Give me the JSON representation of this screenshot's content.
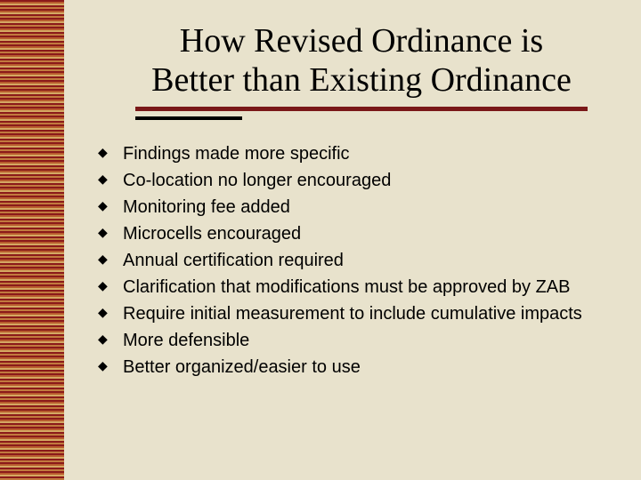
{
  "slide": {
    "background_color": "#e8e2cc",
    "stripe_colors": [
      "#8b1a1a",
      "#b85c2e",
      "#d4a862",
      "#c17a3e"
    ],
    "title": "How Revised Ordinance is Better than Existing Ordinance",
    "title_fontsize": 38,
    "title_color": "#000000",
    "underline_primary_color": "#7a1818",
    "underline_secondary_color": "#000000",
    "bullet_fontsize": 20,
    "bullet_color": "#000000",
    "bullets": [
      "Findings made more specific",
      "Co-location no longer encouraged",
      "Monitoring fee added",
      "Microcells encouraged",
      "Annual certification required",
      "Clarification that modifications must be approved by ZAB",
      "Require initial measurement to include cumulative impacts",
      "More defensible",
      "Better organized/easier to use"
    ]
  }
}
